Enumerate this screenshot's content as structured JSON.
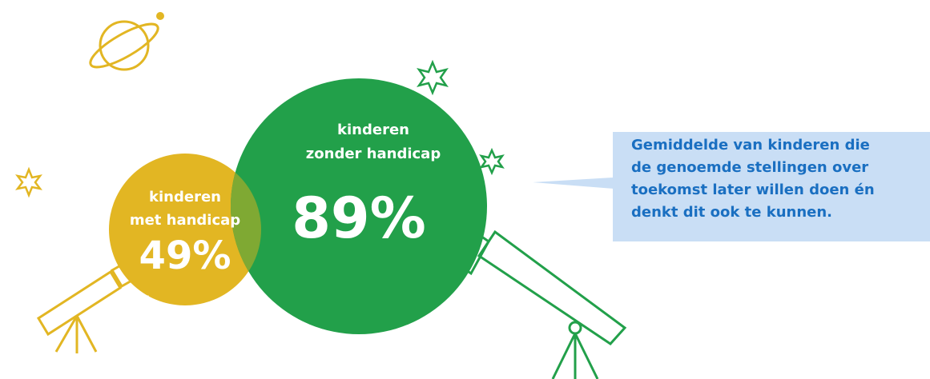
{
  "bubbles": [
    {
      "label_lines": [
        "kinderen",
        "met handicap"
      ],
      "value": "49%"
    },
    {
      "label_lines": [
        "kinderen",
        "zonder handicap"
      ],
      "value": "89%"
    }
  ],
  "callout": {
    "lines": [
      "Gemiddelde van kinderen die",
      "de genoemde stellingen over",
      "toekomst later willen doen én",
      "denkt dit ook te kunnen."
    ]
  }
}
